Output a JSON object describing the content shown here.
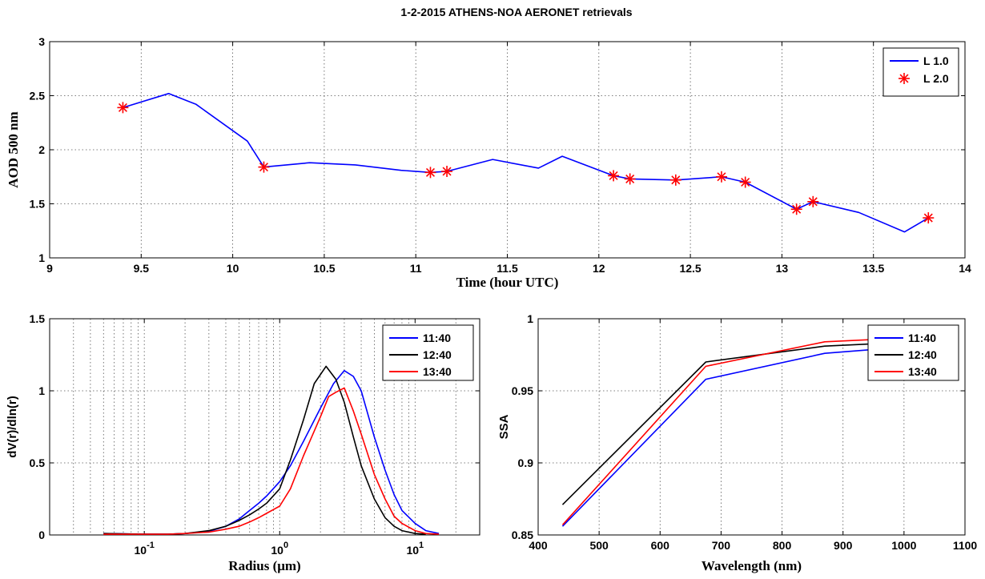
{
  "figure": {
    "title": "1-2-2015 ATHENS-NOA AERONET retrievals"
  },
  "chart_data": [
    {
      "type": "line",
      "title": "1-2-2015 ATHENS-NOA AERONET retrievals",
      "xlabel": "Time (hour UTC)",
      "ylabel": "AOD 500 nm",
      "xlim": [
        9,
        14
      ],
      "ylim": [
        1,
        3
      ],
      "xticks": [
        9,
        9.5,
        10,
        10.5,
        11,
        11.5,
        12,
        12.5,
        13,
        13.5,
        14
      ],
      "xtick_labels": [
        "9",
        "9.5",
        "10",
        "10.5",
        "11",
        "11.5",
        "12",
        "12.5",
        "13",
        "13.5",
        "14"
      ],
      "yticks": [
        1,
        1.5,
        2,
        2.5,
        3
      ],
      "ytick_labels": [
        "1",
        "1.5",
        "2",
        "2.5",
        "3"
      ],
      "grid": true,
      "legend": "top-right",
      "series": [
        {
          "name": "L 1.0",
          "style": "line",
          "color": "#0000ff",
          "x": [
            9.4,
            9.65,
            9.8,
            10.08,
            10.17,
            10.42,
            10.67,
            10.92,
            11.08,
            11.17,
            11.42,
            11.67,
            11.8,
            12.08,
            12.17,
            12.42,
            12.67,
            12.8,
            13.08,
            13.17,
            13.42,
            13.67,
            13.8
          ],
          "y": [
            2.39,
            2.52,
            2.42,
            2.08,
            1.84,
            1.88,
            1.86,
            1.81,
            1.79,
            1.8,
            1.91,
            1.83,
            1.94,
            1.76,
            1.73,
            1.72,
            1.75,
            1.7,
            1.45,
            1.52,
            1.42,
            1.24,
            1.37
          ]
        },
        {
          "name": "L 2.0",
          "style": "marker",
          "marker": "asterisk",
          "color": "#ff0000",
          "x": [
            9.4,
            10.17,
            11.08,
            11.17,
            12.08,
            12.17,
            12.42,
            12.67,
            12.8,
            13.08,
            13.17,
            13.8
          ],
          "y": [
            2.39,
            1.84,
            1.79,
            1.8,
            1.76,
            1.73,
            1.72,
            1.75,
            1.7,
            1.45,
            1.52,
            1.37
          ]
        }
      ]
    },
    {
      "type": "line",
      "xlabel": "Radius (μm)",
      "ylabel": "dV(r)/dln(r)",
      "xscale": "log",
      "xlim": [
        0.02,
        30
      ],
      "ylim": [
        0,
        1.5
      ],
      "xtick_labels": [
        {
          "base": "10",
          "exp": "-1",
          "value": 0.1
        },
        {
          "base": "10",
          "exp": "0",
          "value": 1
        },
        {
          "base": "10",
          "exp": "1",
          "value": 10
        }
      ],
      "yticks": [
        0,
        0.5,
        1,
        1.5
      ],
      "ytick_labels": [
        "0",
        "0.5",
        "1",
        "1.5"
      ],
      "grid": true,
      "legend": "top-right",
      "series": [
        {
          "name": "11:40",
          "color": "#0000ff",
          "x": [
            0.05,
            0.1,
            0.15,
            0.2,
            0.3,
            0.4,
            0.5,
            0.6,
            0.7,
            0.8,
            1.0,
            1.2,
            1.5,
            2.0,
            2.5,
            3.0,
            3.5,
            4.0,
            5.0,
            6.0,
            7.0,
            8.0,
            10,
            12,
            15
          ],
          "y": [
            0.01,
            0.005,
            0.005,
            0.01,
            0.025,
            0.06,
            0.11,
            0.17,
            0.22,
            0.27,
            0.37,
            0.48,
            0.65,
            0.88,
            1.05,
            1.14,
            1.1,
            1.0,
            0.68,
            0.45,
            0.28,
            0.17,
            0.08,
            0.03,
            0.01
          ]
        },
        {
          "name": "12:40",
          "color": "#000000",
          "x": [
            0.05,
            0.1,
            0.15,
            0.2,
            0.3,
            0.4,
            0.5,
            0.6,
            0.7,
            0.8,
            1.0,
            1.2,
            1.5,
            1.8,
            2.2,
            2.6,
            3.0,
            3.5,
            4.0,
            5.0,
            6.0,
            7.0,
            8.0,
            10,
            12
          ],
          "y": [
            0.01,
            0.005,
            0.005,
            0.01,
            0.03,
            0.06,
            0.1,
            0.14,
            0.18,
            0.22,
            0.32,
            0.52,
            0.8,
            1.05,
            1.17,
            1.08,
            0.92,
            0.68,
            0.48,
            0.25,
            0.12,
            0.06,
            0.03,
            0.01,
            0.005
          ]
        },
        {
          "name": "13:40",
          "color": "#ff0000",
          "x": [
            0.05,
            0.1,
            0.15,
            0.2,
            0.3,
            0.4,
            0.5,
            0.6,
            0.7,
            0.8,
            1.0,
            1.2,
            1.5,
            2.0,
            2.3,
            2.6,
            3.0,
            3.5,
            4.0,
            5.0,
            6.0,
            7.0,
            8.0,
            10,
            12,
            15
          ],
          "y": [
            0.005,
            0.005,
            0.005,
            0.01,
            0.02,
            0.04,
            0.06,
            0.09,
            0.12,
            0.15,
            0.2,
            0.32,
            0.55,
            0.82,
            0.96,
            0.99,
            1.02,
            0.86,
            0.7,
            0.42,
            0.25,
            0.13,
            0.08,
            0.03,
            0.01,
            0.005
          ]
        }
      ]
    },
    {
      "type": "line",
      "xlabel": "Wavelength (nm)",
      "ylabel": "SSA",
      "xlim": [
        400,
        1100
      ],
      "ylim": [
        0.85,
        1
      ],
      "xticks": [
        400,
        500,
        600,
        700,
        800,
        900,
        1000,
        1100
      ],
      "xtick_labels": [
        "400",
        "500",
        "600",
        "700",
        "800",
        "900",
        "1000",
        "1100"
      ],
      "yticks": [
        0.85,
        0.9,
        0.95,
        1
      ],
      "ytick_labels": [
        "0.85",
        "0.9",
        "0.95",
        "1"
      ],
      "grid": true,
      "legend": "top-right",
      "series": [
        {
          "name": "11:40",
          "color": "#0000ff",
          "x": [
            440,
            675,
            870,
            1020
          ],
          "y": [
            0.856,
            0.958,
            0.976,
            0.981
          ]
        },
        {
          "name": "12:40",
          "color": "#000000",
          "x": [
            440,
            675,
            870,
            1020
          ],
          "y": [
            0.871,
            0.97,
            0.981,
            0.984
          ]
        },
        {
          "name": "13:40",
          "color": "#ff0000",
          "x": [
            440,
            675,
            870,
            1020
          ],
          "y": [
            0.857,
            0.967,
            0.984,
            0.987
          ]
        }
      ]
    }
  ]
}
